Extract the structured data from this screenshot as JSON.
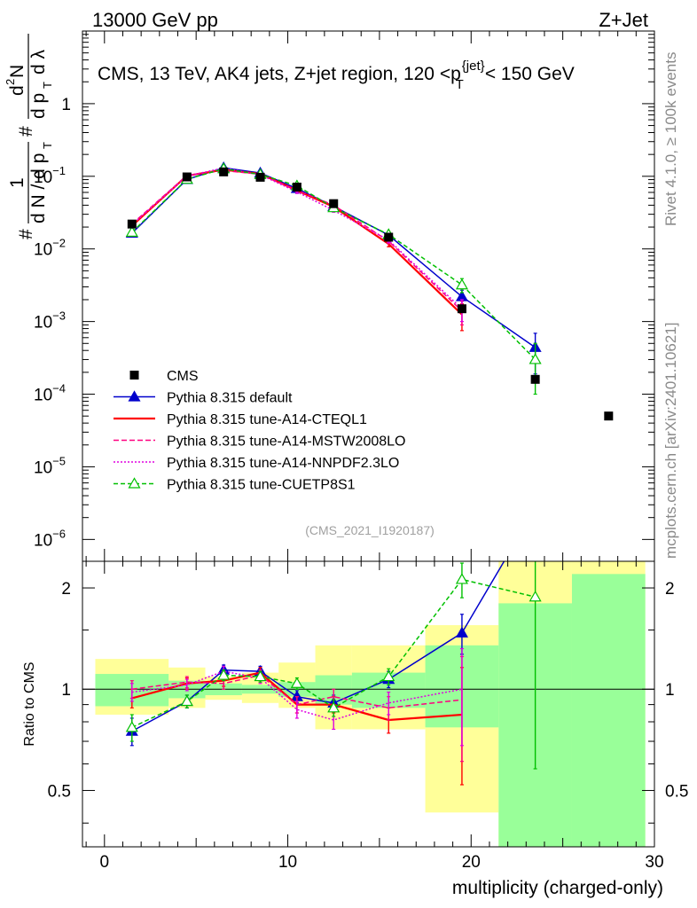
{
  "header": {
    "left": "13000 GeV pp",
    "right": "Z+Jet"
  },
  "side": {
    "rivet": "Rivet 4.1.0, ≥ 100k events",
    "mcplots": "mcplots.cern.ch [arXiv:2401.10621]"
  },
  "chart_data": [
    {
      "type": "line",
      "panel": "main",
      "title": "CMS, 13 TeV, AK4 jets, Z+jet region, 120 <p_T^{jet}< 150 GeV",
      "title_parts": {
        "prefix": "CMS, 13 TeV, AK4 jets, Z+jet region, 120 <p",
        "sup": "{jet}",
        "sub": "T",
        "suffix": "< 150 GeV"
      },
      "ylabel": "1/(dN/dp_T) d²N/(dp_T dλ)",
      "yscale": "log",
      "ylim": [
        5e-07,
        10
      ],
      "xlim": [
        -1.2,
        30
      ],
      "yticks": [
        {
          "v": 1e-06,
          "base": "10",
          "exp": "−6"
        },
        {
          "v": 1e-05,
          "base": "10",
          "exp": "−5"
        },
        {
          "v": 0.0001,
          "base": "10",
          "exp": "−4"
        },
        {
          "v": 0.001,
          "base": "10",
          "exp": "−3"
        },
        {
          "v": 0.01,
          "base": "10",
          "exp": "−2"
        },
        {
          "v": 0.1,
          "base": "10",
          "exp": "−1"
        },
        {
          "v": 1,
          "base": "1",
          "exp": ""
        }
      ],
      "watermark": "(CMS_2021_I1920187)",
      "data": {
        "name": "CMS",
        "x": [
          1.5,
          4.5,
          6.5,
          8.5,
          10.5,
          12.5,
          15.5,
          19.5,
          23.5,
          27.5
        ],
        "y": [
          0.022,
          0.098,
          0.115,
          0.097,
          0.071,
          0.042,
          0.0145,
          0.0015,
          0.00016,
          5e-05
        ]
      },
      "series": [
        {
          "name": "Pythia 8.315 default",
          "color": "#0000cc",
          "dash": "",
          "marker": "triangle-filled",
          "x": [
            1.5,
            4.5,
            6.5,
            8.5,
            10.5,
            12.5,
            15.5,
            19.5,
            23.5
          ],
          "y": [
            0.0165,
            0.0905,
            0.131,
            0.111,
            0.068,
            0.0385,
            0.0155,
            0.0022,
            0.00044
          ],
          "err": [
            0.0013,
            0.003,
            0.004,
            0.004,
            0.003,
            0.002,
            0.0012,
            0.0005,
            0.00025
          ]
        },
        {
          "name": "Pythia 8.315 tune-A14-CTEQL1",
          "color": "#ff0000",
          "dash": "",
          "marker": "none",
          "x": [
            1.5,
            4.5,
            6.5,
            8.5,
            10.5,
            12.5,
            15.5,
            19.5
          ],
          "y": [
            0.0208,
            0.102,
            0.123,
            0.108,
            0.064,
            0.038,
            0.0117,
            0.00125
          ],
          "err": [
            0.0012,
            0.003,
            0.004,
            0.004,
            0.003,
            0.002,
            0.001,
            0.0005
          ]
        },
        {
          "name": "Pythia 8.315 tune-A14-MSTW2008LO",
          "color": "#ff0080",
          "dash": "6,3",
          "marker": "none",
          "x": [
            1.5,
            4.5,
            6.5,
            8.5,
            10.5,
            12.5,
            15.5,
            19.5
          ],
          "y": [
            0.022,
            0.103,
            0.12,
            0.107,
            0.064,
            0.04,
            0.0128,
            0.0014
          ],
          "err": [
            0.0012,
            0.003,
            0.004,
            0.004,
            0.003,
            0.002,
            0.001,
            0.0005
          ]
        },
        {
          "name": "Pythia 8.315 tune-A14-NNPDF2.3LO",
          "color": "#e000e0",
          "dash": "2,2",
          "marker": "none",
          "x": [
            1.5,
            4.5,
            6.5,
            8.5,
            10.5,
            12.5,
            15.5,
            19.5
          ],
          "y": [
            0.0215,
            0.101,
            0.13,
            0.105,
            0.061,
            0.034,
            0.0132,
            0.0015
          ],
          "err": [
            0.0012,
            0.003,
            0.004,
            0.004,
            0.003,
            0.002,
            0.001,
            0.0005
          ]
        },
        {
          "name": "Pythia 8.315 tune-CUETP8S1",
          "color": "#00c000",
          "dash": "5,3",
          "marker": "triangle-open",
          "x": [
            1.5,
            4.5,
            6.5,
            8.5,
            10.5,
            12.5,
            15.5,
            19.5,
            23.5
          ],
          "y": [
            0.017,
            0.091,
            0.127,
            0.106,
            0.074,
            0.037,
            0.0158,
            0.0032,
            0.0003
          ],
          "err": [
            0.0013,
            0.003,
            0.004,
            0.004,
            0.003,
            0.002,
            0.0012,
            0.0007,
            0.0002
          ]
        }
      ]
    },
    {
      "type": "line",
      "panel": "ratio",
      "ylabel": "Ratio to CMS",
      "xlabel": "multiplicity (charged-only)",
      "ylim": [
        0.34,
        2.4
      ],
      "xlim": [
        -1.2,
        30
      ],
      "xticks": [
        0,
        10,
        20,
        30
      ],
      "yticks": [
        0.5,
        1,
        2
      ],
      "uncertainty_bands": {
        "edges": [
          -0.5,
          3.5,
          5.5,
          7.5,
          9.5,
          11.5,
          13.5,
          17.5,
          21.5,
          25.5,
          29.5
        ],
        "stat_lo": [
          0.89,
          0.94,
          0.96,
          0.97,
          0.95,
          0.9,
          0.88,
          0.77,
          0.31,
          0.31
        ],
        "stat_hi": [
          1.11,
          1.06,
          1.04,
          1.03,
          1.05,
          1.1,
          1.12,
          1.35,
          1.8,
          2.2
        ],
        "total_lo": [
          0.84,
          0.88,
          0.93,
          0.91,
          0.88,
          0.76,
          0.76,
          0.43,
          0.31,
          0.31
        ],
        "total_hi": [
          1.23,
          1.16,
          1.09,
          1.12,
          1.2,
          1.35,
          1.35,
          1.55,
          2.4,
          2.4
        ]
      },
      "series": [
        {
          "name": "Pythia 8.315 default",
          "color": "#0000cc",
          "dash": "",
          "marker": "triangle-filled",
          "x": [
            1.5,
            4.5,
            6.5,
            8.5,
            10.5,
            12.5,
            15.5,
            19.5,
            21.8
          ],
          "y": [
            0.75,
            0.92,
            1.14,
            1.13,
            0.95,
            0.91,
            1.07,
            1.47,
            2.4
          ],
          "err": [
            0.07,
            0.04,
            0.04,
            0.04,
            0.04,
            0.05,
            0.06,
            0.2,
            0.0
          ]
        },
        {
          "name": "Pythia 8.315 tune-A14-CTEQL1",
          "color": "#ff0000",
          "dash": "",
          "marker": "none",
          "x": [
            1.5,
            4.5,
            6.5,
            8.5,
            10.5,
            12.5,
            15.5,
            19.5
          ],
          "y": [
            0.94,
            1.04,
            1.06,
            1.12,
            0.9,
            0.9,
            0.81,
            0.84
          ],
          "err": [
            0.06,
            0.04,
            0.04,
            0.04,
            0.05,
            0.05,
            0.07,
            0.32
          ]
        },
        {
          "name": "Pythia 8.315 tune-A14-MSTW2008LO",
          "color": "#ff0080",
          "dash": "6,3",
          "marker": "none",
          "x": [
            1.5,
            4.5,
            6.5,
            8.5,
            10.5,
            12.5,
            15.5,
            19.5
          ],
          "y": [
            1.0,
            1.05,
            1.04,
            1.1,
            0.9,
            0.95,
            0.88,
            0.93
          ],
          "err": [
            0.06,
            0.04,
            0.04,
            0.04,
            0.05,
            0.05,
            0.07,
            0.32
          ]
        },
        {
          "name": "Pythia 8.315 tune-A14-NNPDF2.3LO",
          "color": "#e000e0",
          "dash": "2,2",
          "marker": "none",
          "x": [
            1.5,
            4.5,
            6.5,
            8.5,
            10.5,
            12.5,
            15.5,
            19.5
          ],
          "y": [
            0.98,
            1.03,
            1.13,
            1.08,
            0.87,
            0.81,
            0.91,
            1.0
          ],
          "err": [
            0.06,
            0.04,
            0.04,
            0.04,
            0.05,
            0.05,
            0.07,
            0.32
          ]
        },
        {
          "name": "Pythia 8.315 tune-CUETP8S1",
          "color": "#00c000",
          "dash": "5,3",
          "marker": "triangle-open",
          "x": [
            1.5,
            4.5,
            6.5,
            8.5,
            10.5,
            12.5,
            15.5,
            19.5,
            23.5
          ],
          "y": [
            0.77,
            0.92,
            1.1,
            1.09,
            1.04,
            0.88,
            1.09,
            2.12,
            1.88
          ],
          "err": [
            0.07,
            0.04,
            0.04,
            0.04,
            0.04,
            0.05,
            0.06,
            0.25,
            1.3
          ]
        }
      ]
    }
  ]
}
